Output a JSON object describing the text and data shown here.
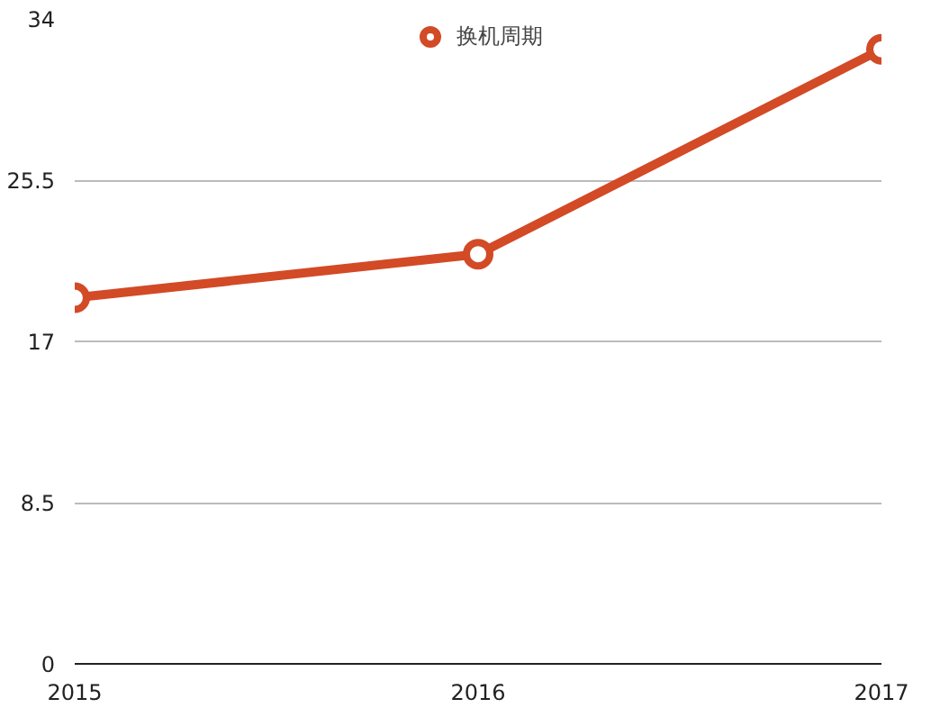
{
  "chart_data": {
    "type": "line",
    "x": [
      2015,
      2016,
      2017
    ],
    "series": [
      {
        "name": "换机周期",
        "color": "#d24a26",
        "values": [
          19.3,
          21.6,
          32.4
        ]
      }
    ],
    "xlim": [
      2015,
      2017
    ],
    "xticks": [
      2015,
      2016,
      2017
    ],
    "ylim": [
      0,
      34
    ],
    "yticks": [
      0,
      8.5,
      17,
      25.5,
      34
    ],
    "grid": "y",
    "legend": "top",
    "marker": "circle",
    "line_style": "solid"
  }
}
